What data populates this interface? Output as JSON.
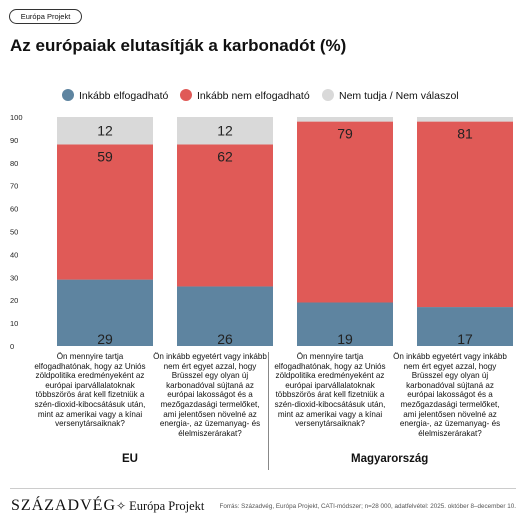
{
  "header": {
    "tag": "Európa Projekt",
    "title": "Az európaiak elutasítják a karbonadót (%)"
  },
  "legend": [
    {
      "label": "Inkább elfogadható",
      "color": "#5e84a0"
    },
    {
      "label": "Inkább nem elfogadható",
      "color": "#e05a57"
    },
    {
      "label": "Nem tudja / Nem válaszol",
      "color": "#d9d9d9"
    }
  ],
  "questions": [
    "Ön mennyire tartja elfogadhatónak, hogy az Uniós zöldpolitika eredményeként az európai iparvállalatoknak többszörös árat kell fizetniük a szén-dioxid-kibocsátásuk után, mint az amerikai vagy a kínai versenytársaiknak?",
    "Ön inkább egyetért vagy inkább nem ért egyet azzal, hogy Brüsszel egy olyan új karbonadóval sújtaná az európai lakosságot és a mezőgazdasági termelőket, ami jelentősen növelné az energia-, az üzemanyag- és élelmiszerárakat?",
    "Ön mennyire tartja elfogadhatónak, hogy az Uniós zöldpolitika eredményeként az európai iparvállalatoknak többszörös árat kell fizetniük a szén-dioxid-kibocsátásuk után, mint az amerikai vagy a kínai versenytársaiknak?",
    "Ön inkább egyetért vagy inkább nem ért egyet azzal, hogy Brüsszel egy olyan új karbonadóval sújtaná az európai lakosságot és a mezőgazdasági termelőket, ami jelentősen növelné az energia-, az üzemanyag- és élelmiszerárakat?"
  ],
  "groups": [
    "EU",
    "Magyarország"
  ],
  "footer": {
    "logo_szazadveg": "SZÁZADVÉG",
    "logo_europa": "Európa Projekt",
    "source": "Forrás: Századvég, Európa Projekt, CATI-módszer; n=28 000, adatfelvétel: 2025. október 8–december 10."
  },
  "chart_data": {
    "type": "bar",
    "stacked": true,
    "categories": [
      "EU – 1",
      "EU – 2",
      "Magyarország – 1",
      "Magyarország – 2"
    ],
    "series": [
      {
        "name": "Inkább elfogadható",
        "color": "#5e84a0",
        "values": [
          29,
          26,
          19,
          17
        ]
      },
      {
        "name": "Inkább nem elfogadható",
        "color": "#e05a57",
        "values": [
          59,
          62,
          79,
          81
        ]
      },
      {
        "name": "Nem tudja / Nem válaszol",
        "color": "#d9d9d9",
        "values": [
          12,
          12,
          2,
          2
        ]
      }
    ],
    "value_labels": [
      [
        29,
        26,
        19,
        17
      ],
      [
        59,
        62,
        79,
        81
      ],
      [
        12,
        12,
        null,
        null
      ]
    ],
    "y_ticks": [
      0,
      10,
      20,
      30,
      40,
      50,
      60,
      70,
      80,
      90,
      100
    ],
    "ylim": [
      0,
      100
    ],
    "legend_position": "top",
    "grid": false
  }
}
